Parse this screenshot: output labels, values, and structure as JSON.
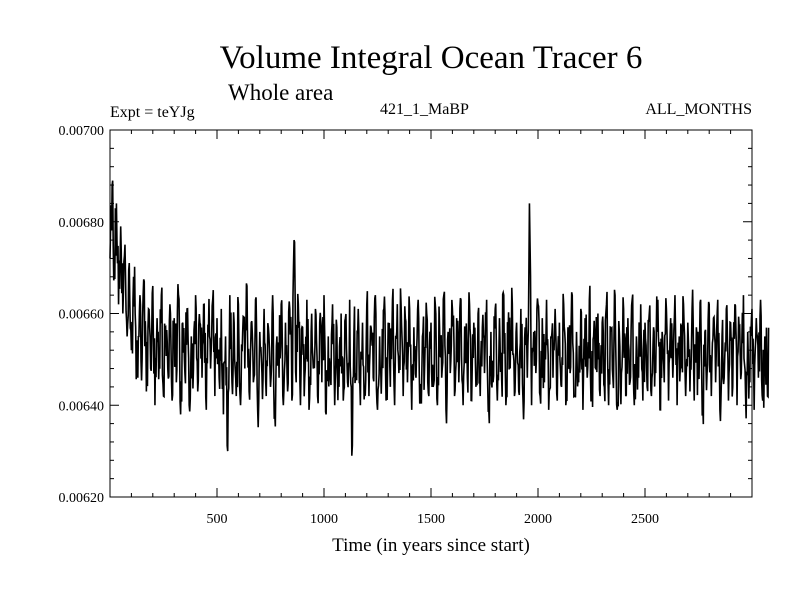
{
  "chart_data": {
    "type": "line",
    "title": "Volume Integral Ocean Tracer 6",
    "subtitle": "Whole area",
    "experiment_label": "Expt = teYJg",
    "run_label": "421_1_MaBP",
    "period_label": "ALL_MONTHS",
    "xlabel": "Time (in years since start)",
    "ylabel": "",
    "xlim": [
      0,
      3000
    ],
    "ylim": [
      0.0062,
      0.007
    ],
    "x_ticks": [
      500,
      1000,
      1500,
      2000,
      2500
    ],
    "x_tick_labels": [
      "500",
      "1000",
      "1500",
      "2000",
      "2500"
    ],
    "y_ticks": [
      0.0062,
      0.0064,
      0.0066,
      0.0068,
      0.007
    ],
    "y_tick_labels": [
      "0.00620",
      "0.00640",
      "0.00660",
      "0.00680",
      "0.00700"
    ],
    "grid": false,
    "series": [
      {
        "name": "Ocean Tracer 6 volume integral",
        "x_start": 0,
        "x_step": 10,
        "values": [
          0.00672,
          0.00688,
          0.00668,
          0.00684,
          0.00662,
          0.00679,
          0.0066,
          0.00675,
          0.00655,
          0.00671,
          0.00652,
          0.00668,
          0.00657,
          0.00646,
          0.00664,
          0.0065,
          0.00667,
          0.00643,
          0.00661,
          0.00648,
          0.00666,
          0.0064,
          0.00659,
          0.0065,
          0.00664,
          0.00642,
          0.00657,
          0.00648,
          0.00662,
          0.00641,
          0.00659,
          0.00645,
          0.00664,
          0.00638,
          0.00658,
          0.00647,
          0.00661,
          0.0064,
          0.00655,
          0.00648,
          0.00664,
          0.00643,
          0.00658,
          0.00646,
          0.00662,
          0.00639,
          0.00656,
          0.00648,
          0.00663,
          0.00642,
          0.00659,
          0.00646,
          0.00661,
          0.00638,
          0.00655,
          0.0063,
          0.00664,
          0.00645,
          0.00658,
          0.00642,
          0.00662,
          0.0064,
          0.00656,
          0.00648,
          0.00666,
          0.00643,
          0.00658,
          0.00645,
          0.00663,
          0.00639,
          0.00656,
          0.00647,
          0.00661,
          0.00642,
          0.00657,
          0.00644,
          0.00664,
          0.00638,
          0.00655,
          0.00646,
          0.00662,
          0.0064,
          0.00658,
          0.00643,
          0.00661,
          0.00641,
          0.00676,
          0.00645,
          0.00662,
          0.0064,
          0.00657,
          0.00646,
          0.00663,
          0.00639,
          0.00656,
          0.00648,
          0.00661,
          0.00642,
          0.00658,
          0.00645,
          0.00664,
          0.00638,
          0.00655,
          0.00646,
          0.00662,
          0.0064,
          0.00657,
          0.00644,
          0.0066,
          0.00641,
          0.00659,
          0.00645,
          0.00663,
          0.00629,
          0.00656,
          0.00647,
          0.00661,
          0.0064,
          0.00658,
          0.00643,
          0.00662,
          0.00642,
          0.00657,
          0.00646,
          0.00664,
          0.00639,
          0.00655,
          0.00648,
          0.00661,
          0.00641,
          0.00658,
          0.00644,
          0.00663,
          0.0064,
          0.00656,
          0.00647,
          0.00662,
          0.00642,
          0.00659,
          0.00645,
          0.00661,
          0.00639,
          0.00657,
          0.00646,
          0.00663,
          0.00641,
          0.00655,
          0.00648,
          0.0066,
          0.00642,
          0.00658,
          0.00644,
          0.00662,
          0.0064,
          0.00657,
          0.00646,
          0.00664,
          0.00639,
          0.00656,
          0.00647,
          0.00661,
          0.00642,
          0.00659,
          0.00645,
          0.00663,
          0.0064,
          0.00655,
          0.00646,
          0.00662,
          0.00641,
          0.00658,
          0.00644,
          0.0066,
          0.00642,
          0.00657,
          0.00647,
          0.00663,
          0.00639,
          0.00656,
          0.00645,
          0.00661,
          0.00641,
          0.00659,
          0.00646,
          0.00664,
          0.0064,
          0.00655,
          0.00648,
          0.00662,
          0.00642,
          0.00658,
          0.00643,
          0.00661,
          0.00641,
          0.00657,
          0.00646,
          0.00684,
          0.0064,
          0.00656,
          0.00647,
          0.00662,
          0.00642,
          0.00659,
          0.00645,
          0.00663,
          0.00639,
          0.00655,
          0.00646,
          0.00661,
          0.00641,
          0.00658,
          0.00644,
          0.00662,
          0.0064,
          0.00657,
          0.00647,
          0.00664,
          0.00642,
          0.00656,
          0.00645,
          0.00661,
          0.00639,
          0.00659,
          0.00646,
          0.00663,
          0.00641,
          0.00655,
          0.00648,
          0.0066,
          0.00642,
          0.00658,
          0.00644,
          0.00662,
          0.0064,
          0.00657,
          0.00646,
          0.00664,
          0.00639,
          0.00656,
          0.00647,
          0.00661,
          0.00642,
          0.00659,
          0.00645,
          0.00663,
          0.0064,
          0.00655,
          0.00646,
          0.00662,
          0.00641,
          0.00658,
          0.00644,
          0.0066,
          0.00642,
          0.00657,
          0.00647,
          0.00663,
          0.00639,
          0.00656,
          0.00645,
          0.00661,
          0.00641,
          0.00659,
          0.00646,
          0.00664,
          0.0064,
          0.00655,
          0.00648,
          0.00662,
          0.00642,
          0.00658,
          0.00643,
          0.00661,
          0.00641,
          0.00657,
          0.00646,
          0.00663,
          0.0064,
          0.00656,
          0.00647,
          0.00662,
          0.00642,
          0.00659,
          0.00645,
          0.00663,
          0.00639,
          0.00655,
          0.00646,
          0.00661,
          0.00641,
          0.00658,
          0.00644,
          0.00662,
          0.0064,
          0.00657,
          0.00647,
          0.00664,
          0.00642,
          0.00656,
          0.00645,
          0.00661,
          0.00639,
          0.00659,
          0.00646,
          0.00663,
          0.00641,
          0.00655,
          0.00648
        ]
      }
    ]
  }
}
